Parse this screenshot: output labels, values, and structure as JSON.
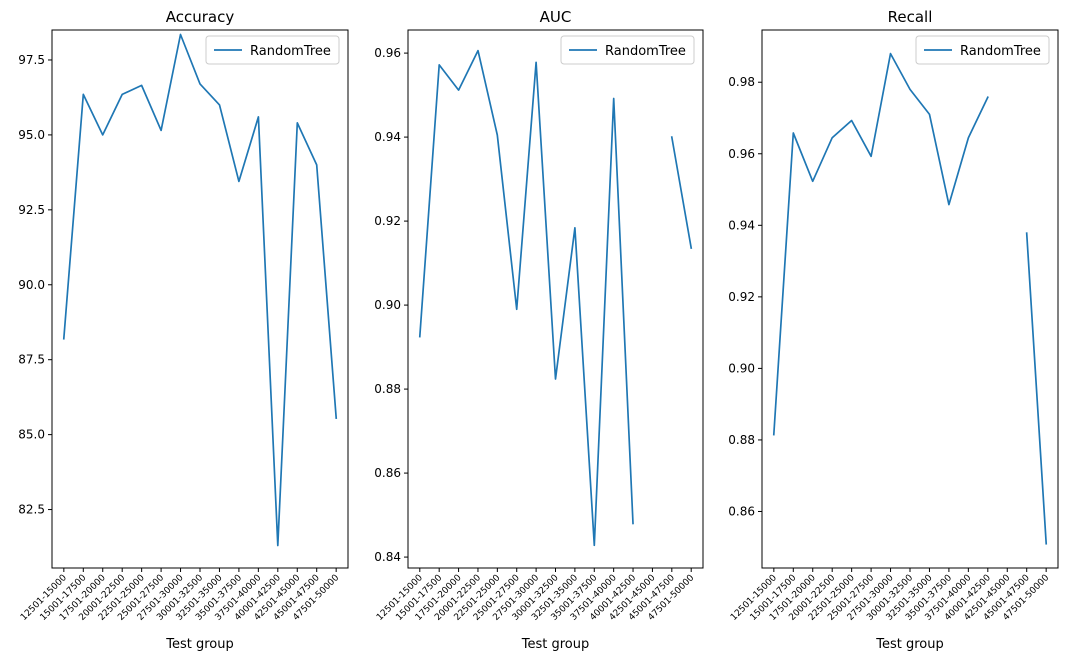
{
  "chart_data": [
    {
      "type": "line",
      "title": "Accuracy",
      "xlabel": "Test group",
      "ylabel": "",
      "categories": [
        "12501-15000",
        "15001-17500",
        "17501-20000",
        "20001-22500",
        "22501-25000",
        "25001-27500",
        "27501-30000",
        "30001-32500",
        "32501-35000",
        "35001-37500",
        "37501-40000",
        "40001-42500",
        "42501-45000",
        "45001-47500",
        "47501-50000"
      ],
      "ylim": [
        80.55,
        98.5
      ],
      "yticks": [
        "82.5",
        "85.0",
        "87.5",
        "90.0",
        "92.5",
        "95.0",
        "97.5"
      ],
      "legend": "upper right",
      "series": [
        {
          "name": "RandomTree",
          "color": "#1f77b4",
          "values": [
            88.2,
            96.35,
            95.0,
            96.35,
            96.65,
            95.15,
            98.35,
            96.7,
            96.0,
            93.45,
            95.6,
            81.3,
            95.4,
            94.0,
            85.55
          ]
        }
      ]
    },
    {
      "type": "line",
      "title": "AUC",
      "xlabel": "Test group",
      "ylabel": "",
      "categories": [
        "12501-15000",
        "15001-17500",
        "17501-20000",
        "20001-22500",
        "22501-25000",
        "25001-27500",
        "27501-30000",
        "30001-32500",
        "32501-35000",
        "35001-37500",
        "37501-40000",
        "40001-42500",
        "42501-45000",
        "45001-47500",
        "47501-50000"
      ],
      "ylim": [
        0.8374,
        0.9655
      ],
      "yticks": [
        "0.84",
        "0.86",
        "0.88",
        "0.90",
        "0.92",
        "0.94",
        "0.96"
      ],
      "legend": "upper right",
      "series": [
        {
          "name": "RandomTree",
          "color": "#1f77b4",
          "values": [
            0.8925,
            0.9572,
            0.9512,
            0.9606,
            0.9405,
            0.899,
            0.9578,
            0.8824,
            0.9184,
            0.8428,
            0.9492,
            0.848,
            null,
            0.94,
            0.9136
          ]
        }
      ]
    },
    {
      "type": "line",
      "title": "Recall",
      "xlabel": "Test group",
      "ylabel": "",
      "categories": [
        "12501-15000",
        "15001-17500",
        "17501-20000",
        "20001-22500",
        "22501-25000",
        "25001-27500",
        "27501-30000",
        "30001-32500",
        "32501-35000",
        "35001-37500",
        "37501-40000",
        "40001-42500",
        "42501-45000",
        "45001-47500",
        "47501-50000"
      ],
      "ylim": [
        0.8442,
        0.9946
      ],
      "yticks": [
        "0.86",
        "0.88",
        "0.90",
        "0.92",
        "0.94",
        "0.96",
        "0.98"
      ],
      "legend": "upper right",
      "series": [
        {
          "name": "RandomTree",
          "color": "#1f77b4",
          "values": [
            0.8815,
            0.9658,
            0.9523,
            0.9645,
            0.9693,
            0.9593,
            0.988,
            0.978,
            0.971,
            0.9458,
            0.9645,
            0.9758,
            null,
            0.9378,
            0.851
          ]
        }
      ]
    }
  ]
}
